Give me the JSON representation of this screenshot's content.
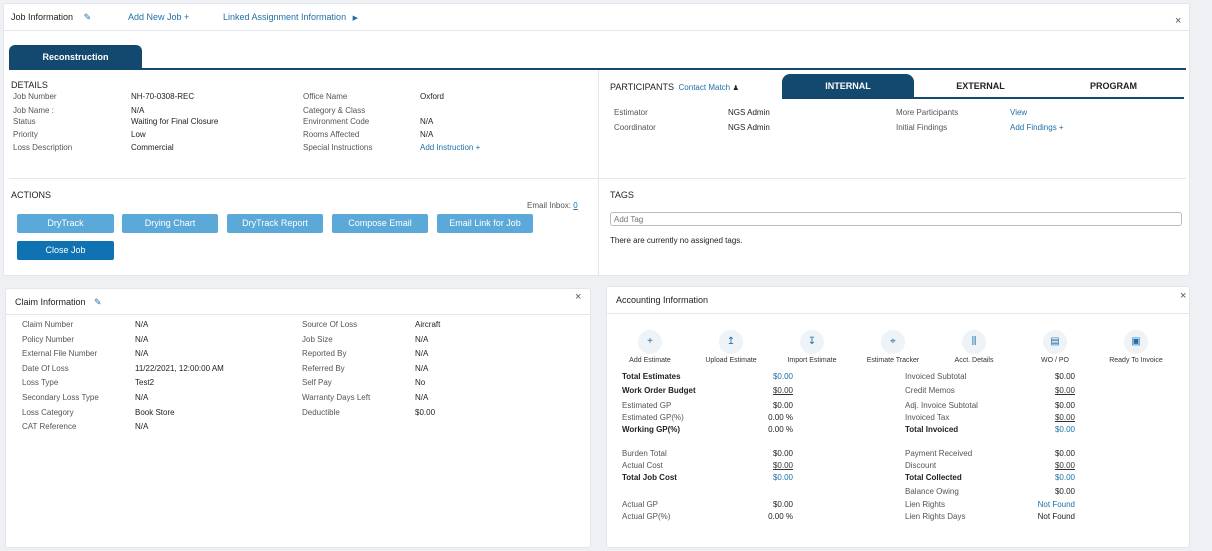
{
  "top": {
    "job_information": "Job Information",
    "add_new_job": "Add New Job +",
    "linked_assignment": "Linked Assignment Information",
    "close": "×"
  },
  "tab_reconstruction": "Reconstruction",
  "details": {
    "title": "DETAILS",
    "left": [
      {
        "label": "Job Number",
        "value": "NH-70-0308-REC"
      },
      {
        "label": "Job Name :",
        "value": "N/A"
      },
      {
        "label": "Status",
        "value": "Waiting for Final Closure"
      },
      {
        "label": "Priority",
        "value": "Low"
      },
      {
        "label": "Loss Description",
        "value": "Commercial"
      }
    ],
    "right": [
      {
        "label": "Office Name",
        "value": "Oxford"
      },
      {
        "label": "Category & Class",
        "value": ""
      },
      {
        "label": "Environment Code",
        "value": "N/A"
      },
      {
        "label": "Rooms Affected",
        "value": "N/A"
      },
      {
        "label": "Special Instructions",
        "value": "Add Instruction +"
      }
    ]
  },
  "participants": {
    "title": "PARTICIPANTS",
    "contact_match": "Contact Match",
    "tabs": [
      "INTERNAL",
      "EXTERNAL",
      "PROGRAM"
    ],
    "rows": [
      {
        "label": "Estimator",
        "value": "NGS Admin"
      },
      {
        "label": "Coordinator",
        "value": "NGS Admin"
      }
    ],
    "more_label": "More Participants",
    "more_value": "View",
    "findings_label": "Initial Findings",
    "findings_value": "Add Findings +"
  },
  "actions": {
    "title": "ACTIONS",
    "email_inbox_label": "Email Inbox:",
    "email_inbox_count": "0",
    "buttons": [
      "DryTrack",
      "Drying Chart",
      "DryTrack Report",
      "Compose Email",
      "Email Link for Job"
    ],
    "close_job": "Close Job"
  },
  "tags": {
    "title": "TAGS",
    "placeholder": "Add Tag",
    "empty_text": "There are currently no assigned tags."
  },
  "claim": {
    "title": "Claim Information",
    "close": "×",
    "left": [
      {
        "label": "Claim Number",
        "value": "N/A"
      },
      {
        "label": "Policy Number",
        "value": "N/A"
      },
      {
        "label": "External File Number",
        "value": "N/A"
      },
      {
        "label": "Date Of Loss",
        "value": "11/22/2021, 12:00:00 AM"
      },
      {
        "label": "Loss Type",
        "value": "Test2"
      },
      {
        "label": "Secondary Loss Type",
        "value": "N/A"
      },
      {
        "label": "Loss Category",
        "value": "Book Store"
      },
      {
        "label": "CAT Reference",
        "value": "N/A"
      }
    ],
    "right": [
      {
        "label": "Source Of Loss",
        "value": "Aircraft"
      },
      {
        "label": "Job Size",
        "value": "N/A"
      },
      {
        "label": "Reported By",
        "value": "N/A"
      },
      {
        "label": "Referred By",
        "value": "N/A"
      },
      {
        "label": "Self Pay",
        "value": "No"
      },
      {
        "label": "Warranty Days Left",
        "value": "N/A"
      },
      {
        "label": "Deductible",
        "value": "$0.00"
      }
    ]
  },
  "accounting": {
    "title": "Accounting Information",
    "close": "×",
    "actions": [
      "Add Estimate",
      "Upload Estimate",
      "Import Estimate",
      "Estimate Tracker",
      "Acct. Details",
      "WO / PO",
      "Ready To Invoice"
    ],
    "left": [
      {
        "label": "Total Estimates",
        "value": "$0.00"
      },
      {
        "label": "Work Order Budget",
        "value": "$0.00"
      },
      {
        "label": "Estimated GP",
        "value": "$0.00"
      },
      {
        "label": "Estimated GP(%)",
        "value": "0.00 %"
      },
      {
        "label": "Working GP(%)",
        "value": "0.00 %"
      },
      {
        "label": "Burden Total",
        "value": "$0.00"
      },
      {
        "label": "Actual Cost",
        "value": "$0.00"
      },
      {
        "label": "Total Job Cost",
        "value": "$0.00"
      },
      {
        "label": "Actual GP",
        "value": "$0.00"
      },
      {
        "label": "Actual GP(%)",
        "value": "0.00 %"
      }
    ],
    "right": [
      {
        "label": "Invoiced Subtotal",
        "value": "$0.00"
      },
      {
        "label": "Credit Memos",
        "value": "$0.00"
      },
      {
        "label": "Adj. Invoice Subtotal",
        "value": "$0.00"
      },
      {
        "label": "Invoiced Tax",
        "value": "$0.00"
      },
      {
        "label": "Total Invoiced",
        "value": "$0.00"
      },
      {
        "label": "Payment Received",
        "value": "$0.00"
      },
      {
        "label": "Discount",
        "value": "$0.00"
      },
      {
        "label": "Total Collected",
        "value": "$0.00"
      },
      {
        "label": "Balance Owing",
        "value": "$0.00"
      },
      {
        "label": "Lien Rights",
        "value": "Not Found"
      },
      {
        "label": "Lien Rights Days",
        "value": "Not Found"
      }
    ]
  },
  "colors": {
    "accent": "#13496e",
    "link": "#1f6fa8",
    "button": "#5aa9d8",
    "button_primary": "#0f73b3"
  }
}
